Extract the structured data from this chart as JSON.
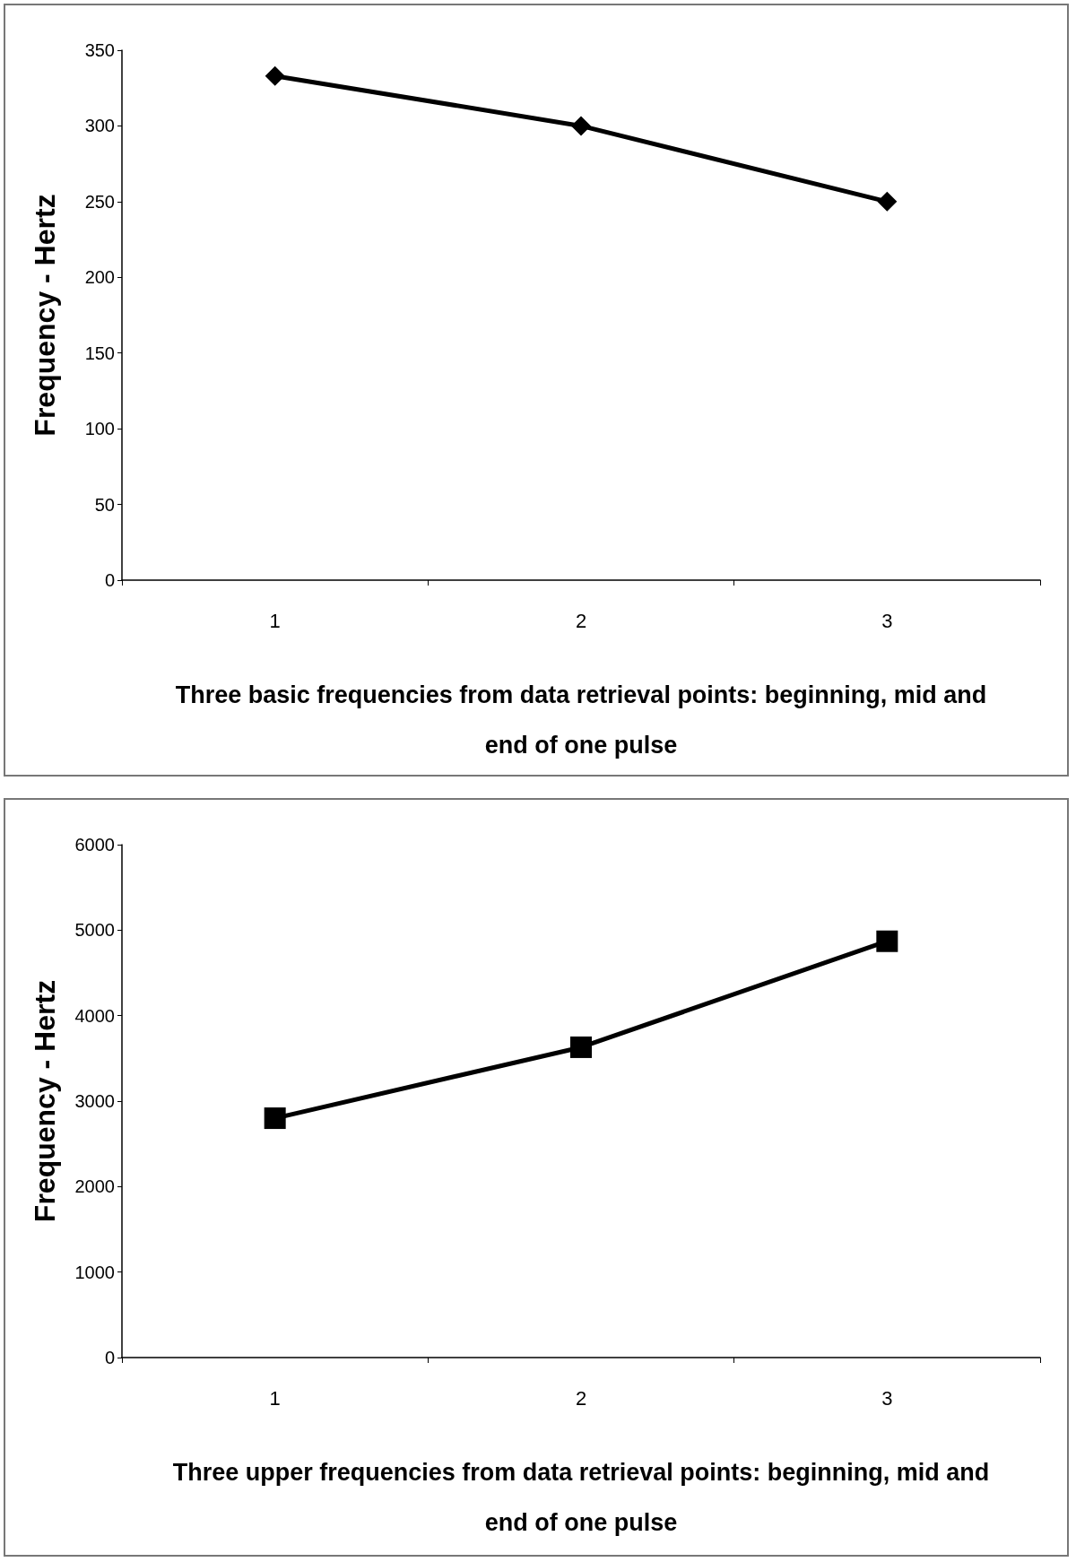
{
  "chart_data": [
    {
      "type": "line",
      "categories": [
        "1",
        "2",
        "3"
      ],
      "values": [
        333,
        300,
        250
      ],
      "color": "#000000",
      "marker": "diamond",
      "line_style": "solid",
      "ylabel": "Frequency - Hertz",
      "xlabel": "Three basic frequencies from data retrieval points: beginning, mid and end of one pulse",
      "ylim": [
        0,
        350
      ],
      "yticks": [
        0,
        50,
        100,
        150,
        200,
        250,
        300,
        350
      ],
      "grid": false
    },
    {
      "type": "line",
      "categories": [
        "1",
        "2",
        "3"
      ],
      "values": [
        2800,
        3630,
        4870
      ],
      "color": "#000000",
      "marker": "square",
      "line_style": "solid",
      "ylabel": "Frequency - Hertz",
      "xlabel": "Three upper frequencies from data retrieval points: beginning, mid and end of one pulse",
      "ylim": [
        0,
        6000
      ],
      "yticks": [
        0,
        1000,
        2000,
        3000,
        4000,
        5000,
        6000
      ],
      "grid": false
    }
  ]
}
